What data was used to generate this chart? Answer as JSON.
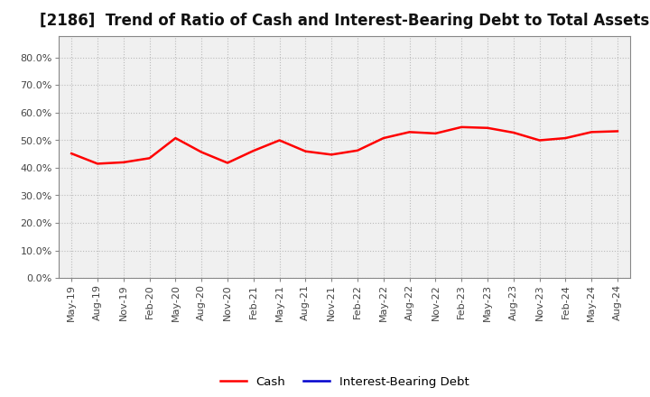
{
  "title": "[2186]  Trend of Ratio of Cash and Interest-Bearing Debt to Total Assets",
  "x_labels": [
    "May-19",
    "Aug-19",
    "Nov-19",
    "Feb-20",
    "May-20",
    "Aug-20",
    "Nov-20",
    "Feb-21",
    "May-21",
    "Aug-21",
    "Nov-21",
    "Feb-22",
    "May-22",
    "Aug-22",
    "Nov-22",
    "Feb-23",
    "May-23",
    "Aug-23",
    "Nov-23",
    "Feb-24",
    "May-24",
    "Aug-24"
  ],
  "cash_values": [
    0.452,
    0.415,
    0.42,
    0.435,
    0.508,
    0.457,
    0.418,
    0.462,
    0.5,
    0.46,
    0.448,
    0.463,
    0.508,
    0.53,
    0.525,
    0.548,
    0.545,
    0.528,
    0.5,
    0.508,
    0.53,
    0.533
  ],
  "cash_color": "#FF0000",
  "debt_color": "#0000CD",
  "background_color": "#FFFFFF",
  "plot_bg_color": "#F0F0F0",
  "grid_color": "#BBBBBB",
  "ylim": [
    0.0,
    0.88
  ],
  "yticks": [
    0.0,
    0.1,
    0.2,
    0.3,
    0.4,
    0.5,
    0.6,
    0.7,
    0.8
  ],
  "title_fontsize": 12,
  "tick_fontsize": 8,
  "legend_fontsize": 9.5,
  "line_width": 1.8
}
